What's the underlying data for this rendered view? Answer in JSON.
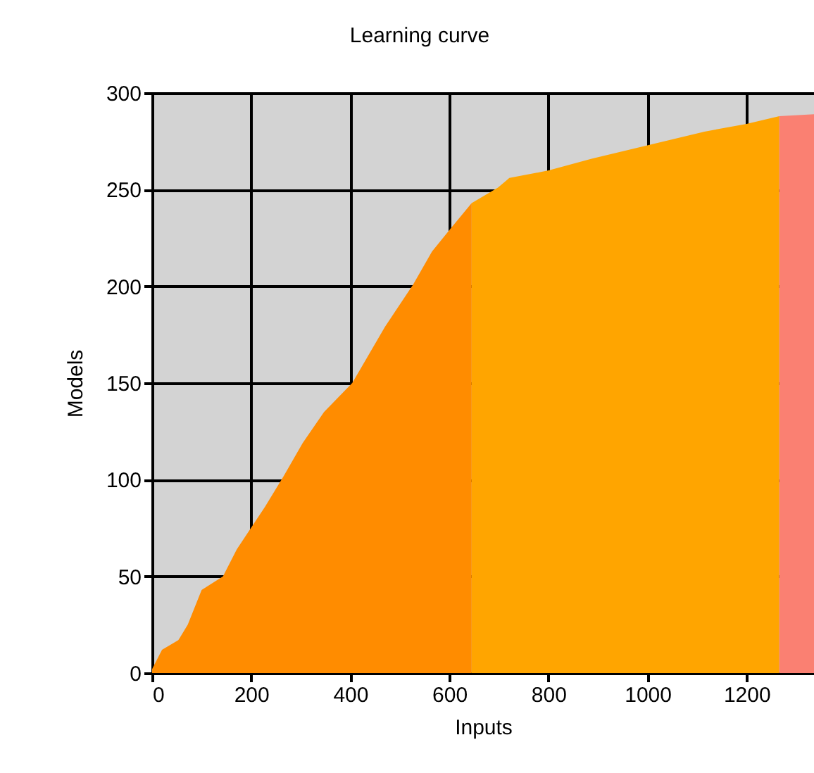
{
  "chart_data": {
    "type": "area",
    "title": "Learning curve",
    "xlabel": "Inputs",
    "ylabel": "Models",
    "xlim": [
      0,
      1336
    ],
    "xticks": [
      0,
      200,
      400,
      600,
      800,
      1000,
      1200
    ],
    "ylim": [
      0,
      300
    ],
    "yticks": [
      0,
      50,
      100,
      150,
      200,
      250,
      300
    ],
    "grid": true,
    "series": [
      {
        "color": "#ff8c00",
        "x": [
          0,
          20,
          53,
          72,
          100,
          143,
          171,
          228,
          266,
          304,
          347,
          404,
          470,
          527,
          565,
          603,
          645
        ],
        "values": [
          2,
          12,
          17,
          25,
          43,
          50,
          64,
          86,
          102,
          119,
          135,
          150,
          179,
          201,
          218,
          230,
          243
        ]
      },
      {
        "color": "#ffa500",
        "x": [
          645,
          698,
          721,
          802,
          887,
          1001,
          1115,
          1200,
          1266
        ],
        "values": [
          243,
          251,
          256,
          260,
          266,
          273,
          280,
          284,
          288
        ]
      },
      {
        "color": "#fa8072",
        "x": [
          1266,
          1336
        ],
        "values": [
          288,
          289
        ]
      }
    ]
  }
}
